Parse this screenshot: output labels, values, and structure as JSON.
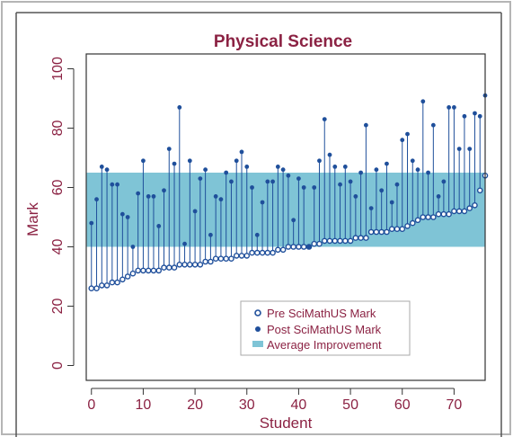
{
  "chart_data": {
    "type": "scatter",
    "title": "Physical Science",
    "xlabel": "Student",
    "ylabel": "Mark",
    "xlim": [
      -1,
      76
    ],
    "ylim": [
      -5,
      105
    ],
    "xticks": [
      "0",
      "10",
      "20",
      "30",
      "40",
      "50",
      "60",
      "70"
    ],
    "yticks": [
      "0",
      "20",
      "40",
      "60",
      "80",
      "100"
    ],
    "legend_position": "bottom-right",
    "grid": false,
    "band": {
      "name": "Average Improvement",
      "from": 40,
      "to": 65,
      "color": "#7fc4d6"
    },
    "colors": {
      "title": "#8b2243",
      "axis_text": "#8b2243",
      "marker": "#1f4f9b",
      "stem": "#1f4f9b",
      "frame": "#333333"
    },
    "series": [
      {
        "name": "Pre SciMathUS Mark",
        "marker": "open-circle",
        "values": [
          26,
          26,
          27,
          27,
          28,
          28,
          29,
          30,
          31,
          32,
          32,
          32,
          32,
          32,
          33,
          33,
          33,
          34,
          34,
          34,
          34,
          34,
          35,
          35,
          36,
          36,
          36,
          36,
          37,
          37,
          37,
          38,
          38,
          38,
          38,
          38,
          39,
          39,
          40,
          40,
          40,
          40,
          40,
          41,
          41,
          42,
          42,
          42,
          42,
          42,
          42,
          43,
          43,
          43,
          45,
          45,
          45,
          45,
          46,
          46,
          46,
          47,
          48,
          49,
          50,
          50,
          50,
          51,
          51,
          51,
          52,
          52,
          52,
          53,
          54,
          59,
          64
        ]
      },
      {
        "name": "Post SciMathUS Mark",
        "marker": "filled-circle",
        "values": [
          48,
          56,
          67,
          66,
          61,
          61,
          51,
          50,
          40,
          58,
          69,
          57,
          57,
          47,
          59,
          73,
          68,
          87,
          41,
          69,
          52,
          63,
          66,
          44,
          57,
          56,
          65,
          62,
          69,
          72,
          67,
          60,
          44,
          55,
          62,
          62,
          67,
          66,
          64,
          49,
          63,
          60,
          40,
          60,
          69,
          83,
          71,
          67,
          61,
          67,
          62,
          57,
          65,
          81,
          53,
          66,
          59,
          68,
          55,
          61,
          76,
          78,
          69,
          66,
          89,
          65,
          81,
          57,
          62,
          87,
          87,
          73,
          84,
          73,
          85,
          84,
          91
        ]
      }
    ]
  },
  "legend": {
    "items": [
      {
        "label": "Pre SciMathUS Mark"
      },
      {
        "label": "Post SciMathUS Mark"
      },
      {
        "label": "Average Improvement"
      }
    ]
  },
  "text": {
    "title": "Physical Science",
    "xlabel": "Student",
    "ylabel": "Mark"
  }
}
